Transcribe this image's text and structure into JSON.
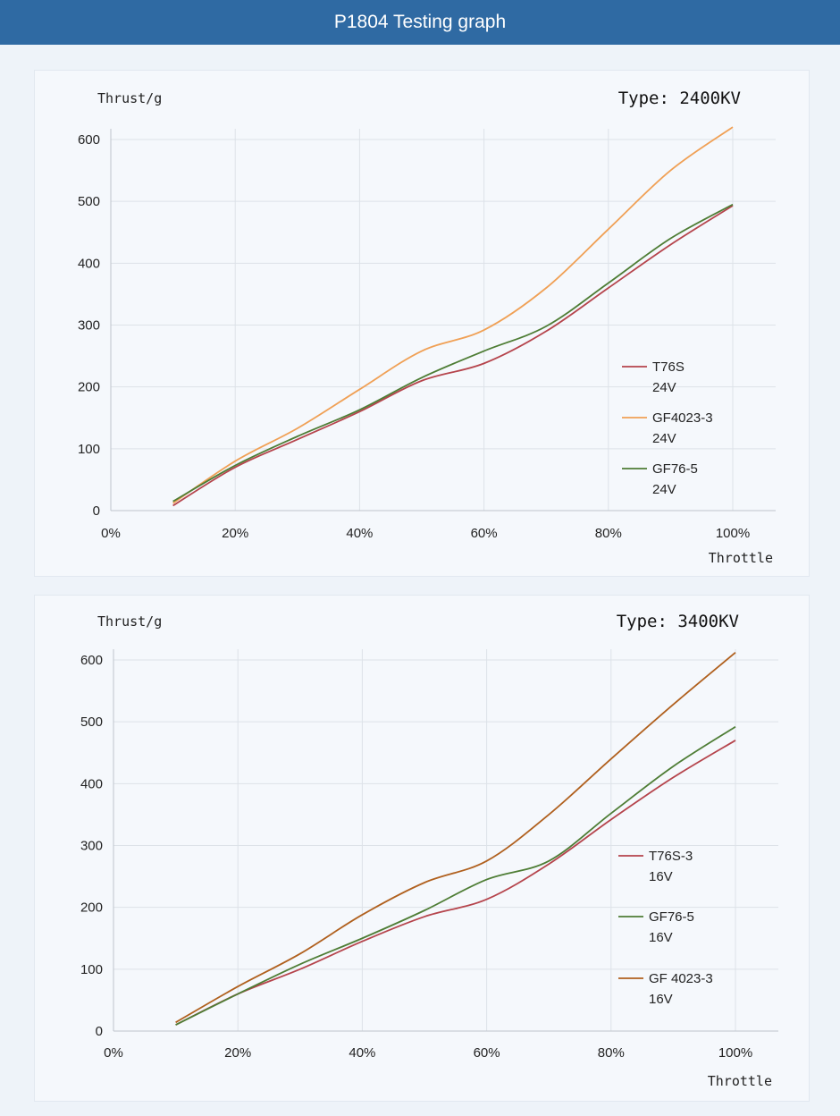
{
  "header": {
    "title": "P1804 Testing graph"
  },
  "colors": {
    "header_bg": "#2f6aa3",
    "red": "#b5444c",
    "orange": "#f0a055",
    "green": "#4e7d35",
    "brown": "#b0601e",
    "grid": "#dde2e8",
    "axis": "#bfc5cc"
  },
  "chart_data": [
    {
      "type": "line",
      "title": "Type: 2400KV",
      "ylabel": "Thrust/g",
      "xlabel": "Throttle",
      "xlim": [
        0,
        100
      ],
      "ylim": [
        0,
        620
      ],
      "x_ticks": [
        0,
        20,
        40,
        60,
        80,
        100
      ],
      "x_tick_labels": [
        "0%",
        "20%",
        "40%",
        "60%",
        "80%",
        "100%"
      ],
      "y_ticks": [
        0,
        100,
        200,
        300,
        400,
        500,
        600
      ],
      "y_tick_labels": [
        "0",
        "100",
        "200",
        "300",
        "400",
        "500",
        "600"
      ],
      "grid": true,
      "legend_position": "right",
      "x": [
        10,
        20,
        30,
        40,
        50,
        60,
        70,
        80,
        90,
        100
      ],
      "series": [
        {
          "name": "T76S 24V",
          "legend_lines": [
            "T76S",
            "24V"
          ],
          "color": "#b5444c",
          "values": [
            8,
            70,
            115,
            160,
            210,
            238,
            290,
            360,
            430,
            493
          ]
        },
        {
          "name": "GF4023-3 24V",
          "legend_lines": [
            "GF4023-3",
            "24V"
          ],
          "color": "#f0a055",
          "values": [
            12,
            80,
            133,
            196,
            258,
            292,
            360,
            455,
            550,
            620
          ]
        },
        {
          "name": "GF76-5 24V",
          "legend_lines": [
            "GF76-5",
            "24V"
          ],
          "color": "#4e7d35",
          "values": [
            15,
            73,
            120,
            163,
            215,
            258,
            298,
            368,
            440,
            495
          ]
        }
      ]
    },
    {
      "type": "line",
      "title": "Type: 3400KV",
      "ylabel": "Thrust/g",
      "xlabel": "Throttle",
      "xlim": [
        0,
        100
      ],
      "ylim": [
        0,
        620
      ],
      "x_ticks": [
        0,
        20,
        40,
        60,
        80,
        100
      ],
      "x_tick_labels": [
        "0%",
        "20%",
        "40%",
        "60%",
        "80%",
        "100%"
      ],
      "y_ticks": [
        0,
        100,
        200,
        300,
        400,
        500,
        600
      ],
      "y_tick_labels": [
        "0",
        "100",
        "200",
        "300",
        "400",
        "500",
        "600"
      ],
      "grid": true,
      "legend_position": "right",
      "x": [
        10,
        20,
        30,
        40,
        50,
        60,
        70,
        80,
        90,
        100
      ],
      "series": [
        {
          "name": "T76S-3 16V",
          "legend_lines": [
            "T76S-3",
            "16V"
          ],
          "color": "#b5444c",
          "values": [
            10,
            60,
            100,
            145,
            185,
            213,
            270,
            342,
            410,
            470
          ]
        },
        {
          "name": "GF76-5 16V",
          "legend_lines": [
            "GF76-5",
            "16V"
          ],
          "color": "#4e7d35",
          "values": [
            10,
            60,
            108,
            150,
            195,
            245,
            275,
            352,
            428,
            492
          ]
        },
        {
          "name": "GF 4023-3 16V",
          "legend_lines": [
            "GF 4023-3",
            "16V"
          ],
          "color": "#b0601e",
          "values": [
            14,
            72,
            125,
            188,
            240,
            275,
            350,
            440,
            528,
            612
          ]
        }
      ]
    }
  ]
}
